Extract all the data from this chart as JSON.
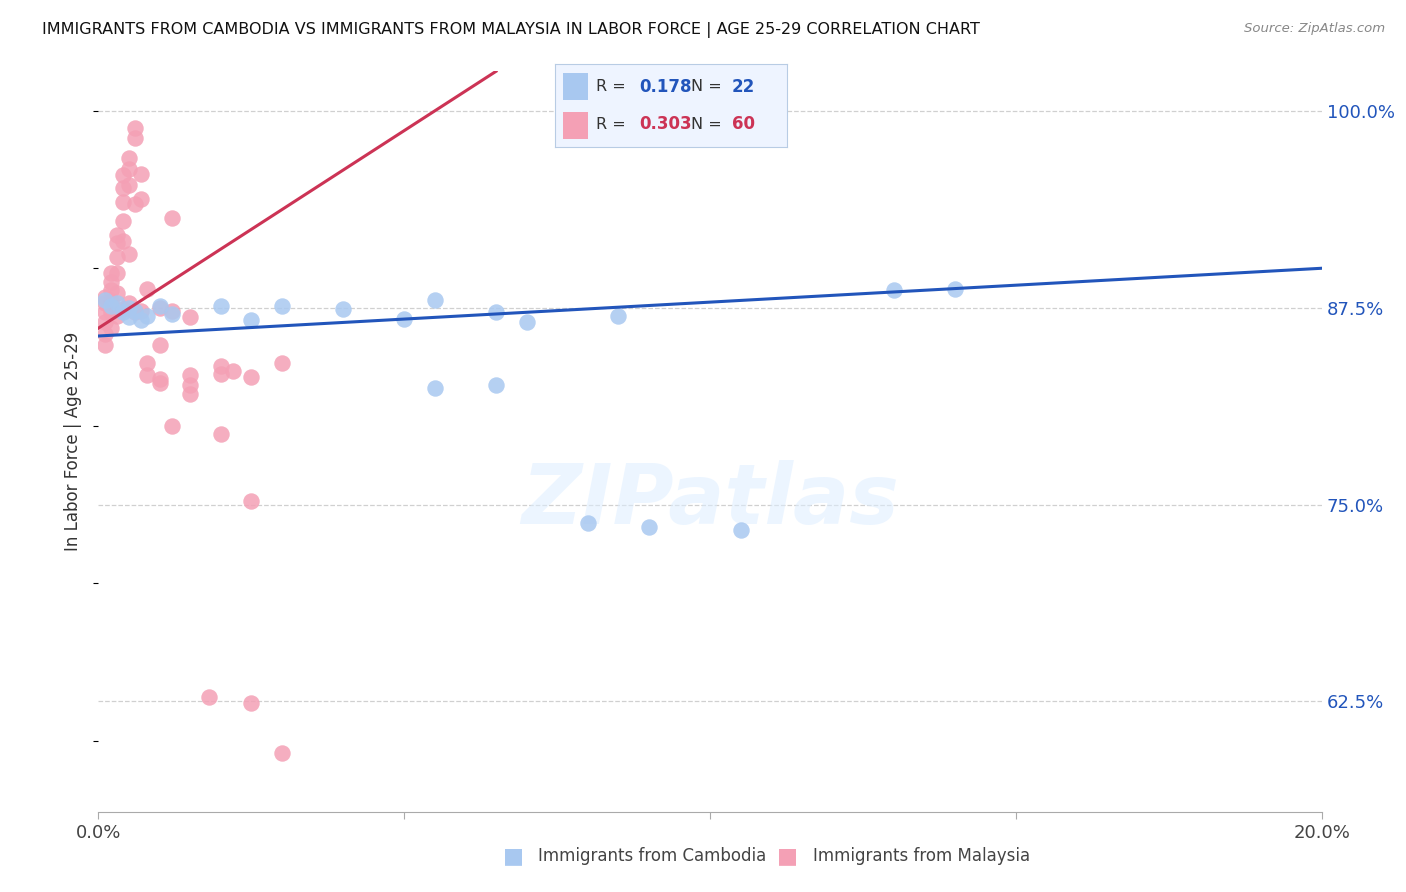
{
  "title": "IMMIGRANTS FROM CAMBODIA VS IMMIGRANTS FROM MALAYSIA IN LABOR FORCE | AGE 25-29 CORRELATION CHART",
  "source": "Source: ZipAtlas.com",
  "ylabel": "In Labor Force | Age 25-29",
  "xlim": [
    0.0,
    0.2
  ],
  "ylim": [
    0.555,
    1.025
  ],
  "yticks": [
    0.625,
    0.75,
    0.875,
    1.0
  ],
  "ytick_labels": [
    "62.5%",
    "75.0%",
    "87.5%",
    "100.0%"
  ],
  "xticks": [
    0.0,
    0.05,
    0.1,
    0.15,
    0.2
  ],
  "xtick_labels": [
    "0.0%",
    "",
    "",
    "",
    "20.0%"
  ],
  "background_color": "#ffffff",
  "grid_color": "#d0d0d0",
  "cambodia_fill": "#a8c8f0",
  "malaysia_fill": "#f4a0b5",
  "cambodia_line_color": "#2255bb",
  "malaysia_line_color": "#cc3355",
  "r_cambodia": "0.178",
  "n_cambodia": "22",
  "r_malaysia": "0.303",
  "n_malaysia": "60",
  "cam_line_x0": 0.0,
  "cam_line_y0": 0.857,
  "cam_line_x1": 0.2,
  "cam_line_y1": 0.9,
  "mal_line_x0": 0.0,
  "mal_line_y0": 0.862,
  "mal_line_x1": 0.065,
  "mal_line_y1": 1.025,
  "cambodia_pts": [
    [
      0.001,
      0.88
    ],
    [
      0.002,
      0.876
    ],
    [
      0.003,
      0.878
    ],
    [
      0.004,
      0.872
    ],
    [
      0.005,
      0.875
    ],
    [
      0.005,
      0.869
    ],
    [
      0.006,
      0.873
    ],
    [
      0.007,
      0.867
    ],
    [
      0.008,
      0.87
    ],
    [
      0.01,
      0.876
    ],
    [
      0.012,
      0.871
    ],
    [
      0.02,
      0.876
    ],
    [
      0.025,
      0.867
    ],
    [
      0.03,
      0.876
    ],
    [
      0.04,
      0.874
    ],
    [
      0.05,
      0.868
    ],
    [
      0.055,
      0.88
    ],
    [
      0.065,
      0.872
    ],
    [
      0.07,
      0.866
    ],
    [
      0.085,
      0.87
    ],
    [
      0.13,
      0.886
    ],
    [
      0.14,
      0.887
    ]
  ],
  "cambodia_low_pts": [
    [
      0.055,
      0.824
    ],
    [
      0.065,
      0.826
    ],
    [
      0.08,
      0.738
    ],
    [
      0.09,
      0.736
    ],
    [
      0.105,
      0.734
    ]
  ],
  "malaysia_pts": [
    [
      0.001,
      0.882
    ],
    [
      0.001,
      0.878
    ],
    [
      0.001,
      0.872
    ],
    [
      0.001,
      0.866
    ],
    [
      0.001,
      0.858
    ],
    [
      0.001,
      0.851
    ],
    [
      0.002,
      0.897
    ],
    [
      0.002,
      0.891
    ],
    [
      0.002,
      0.886
    ],
    [
      0.002,
      0.879
    ],
    [
      0.002,
      0.872
    ],
    [
      0.002,
      0.862
    ],
    [
      0.003,
      0.921
    ],
    [
      0.003,
      0.916
    ],
    [
      0.003,
      0.907
    ],
    [
      0.003,
      0.897
    ],
    [
      0.003,
      0.884
    ],
    [
      0.003,
      0.87
    ],
    [
      0.004,
      0.959
    ],
    [
      0.004,
      0.951
    ],
    [
      0.004,
      0.942
    ],
    [
      0.004,
      0.93
    ],
    [
      0.004,
      0.917
    ],
    [
      0.004,
      0.874
    ],
    [
      0.005,
      0.97
    ],
    [
      0.005,
      0.963
    ],
    [
      0.005,
      0.953
    ],
    [
      0.005,
      0.909
    ],
    [
      0.005,
      0.878
    ],
    [
      0.006,
      0.989
    ],
    [
      0.006,
      0.983
    ],
    [
      0.006,
      0.941
    ],
    [
      0.006,
      0.872
    ],
    [
      0.007,
      0.96
    ],
    [
      0.007,
      0.944
    ],
    [
      0.007,
      0.873
    ],
    [
      0.008,
      0.887
    ],
    [
      0.008,
      0.84
    ],
    [
      0.01,
      0.875
    ],
    [
      0.01,
      0.851
    ],
    [
      0.012,
      0.932
    ],
    [
      0.012,
      0.873
    ],
    [
      0.015,
      0.869
    ],
    [
      0.015,
      0.826
    ],
    [
      0.02,
      0.833
    ],
    [
      0.02,
      0.795
    ],
    [
      0.022,
      0.835
    ],
    [
      0.025,
      0.752
    ],
    [
      0.03,
      0.84
    ],
    [
      0.008,
      0.832
    ],
    [
      0.01,
      0.83
    ],
    [
      0.012,
      0.8
    ],
    [
      0.015,
      0.832
    ],
    [
      0.02,
      0.838
    ],
    [
      0.025,
      0.831
    ],
    [
      0.01,
      0.827
    ],
    [
      0.015,
      0.82
    ],
    [
      0.025,
      0.624
    ],
    [
      0.018,
      0.628
    ],
    [
      0.03,
      0.592
    ]
  ]
}
